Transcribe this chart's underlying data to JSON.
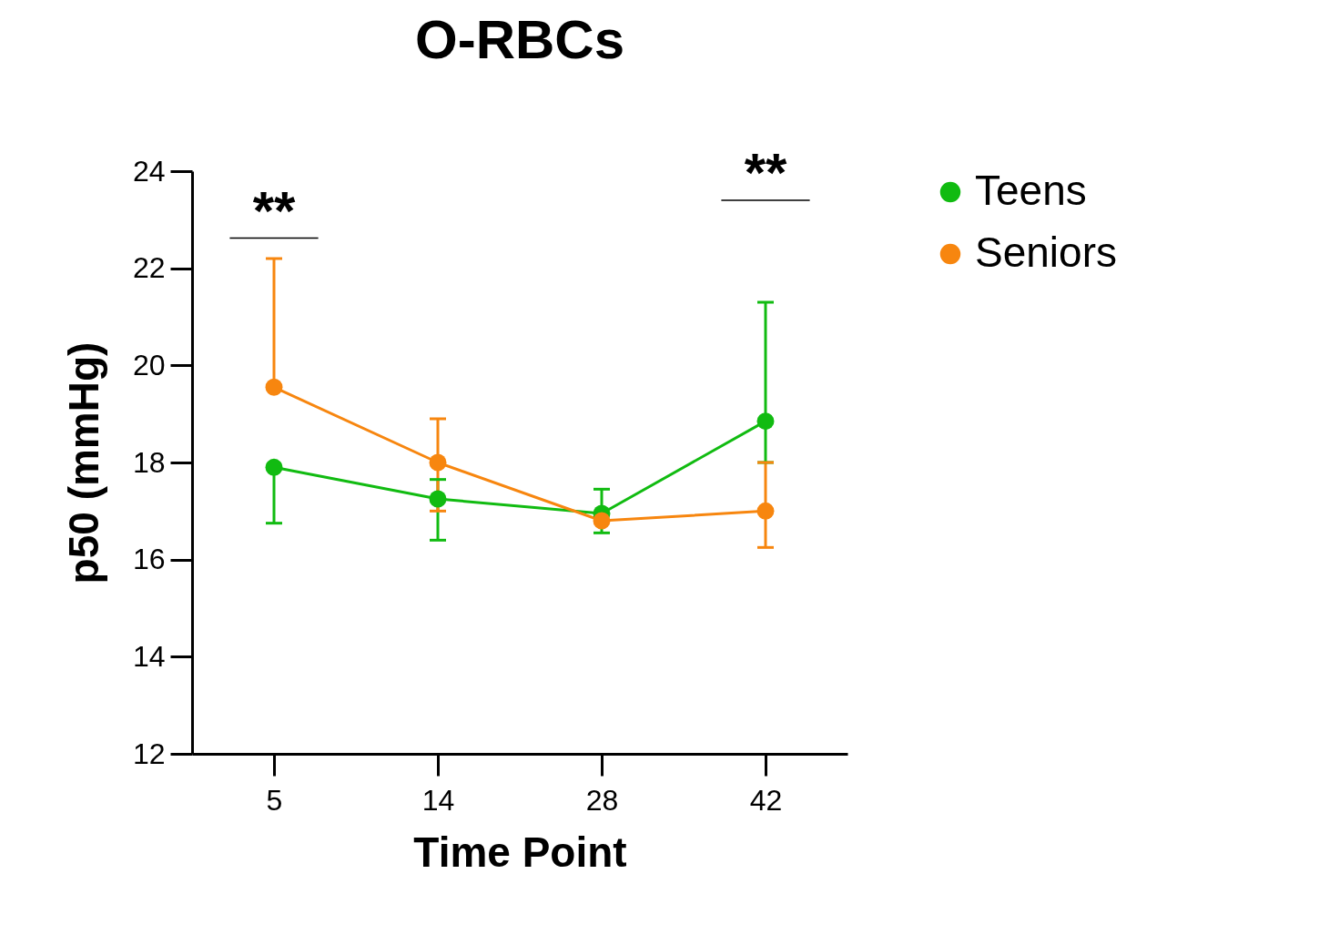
{
  "chart_data": {
    "type": "line",
    "title": "O-RBCs",
    "xlabel": "Time Point",
    "ylabel": "p50 (mmHg)",
    "categories": [
      "5",
      "14",
      "28",
      "42"
    ],
    "series": [
      {
        "name": "Teens",
        "color": "#11bb11",
        "values": [
          17.9,
          17.25,
          16.95,
          18.85
        ],
        "errors": [
          [
            16.75,
            17.9
          ],
          [
            16.4,
            17.65
          ],
          [
            16.55,
            17.45
          ],
          [
            18.0,
            21.3
          ]
        ]
      },
      {
        "name": "Seniors",
        "color": "#f7860f",
        "values": [
          19.55,
          18.0,
          16.8,
          17.0
        ],
        "errors": [
          [
            19.55,
            22.2
          ],
          [
            17.0,
            18.9
          ],
          null,
          [
            16.25,
            18.0
          ]
        ]
      }
    ],
    "ylim": [
      12,
      24
    ],
    "yticks": [
      12,
      14,
      16,
      18,
      20,
      22,
      24
    ],
    "grid": false,
    "legend": "top right",
    "marker": "circle",
    "line_style": "solid",
    "annotations": [
      "**",
      "**"
    ]
  }
}
